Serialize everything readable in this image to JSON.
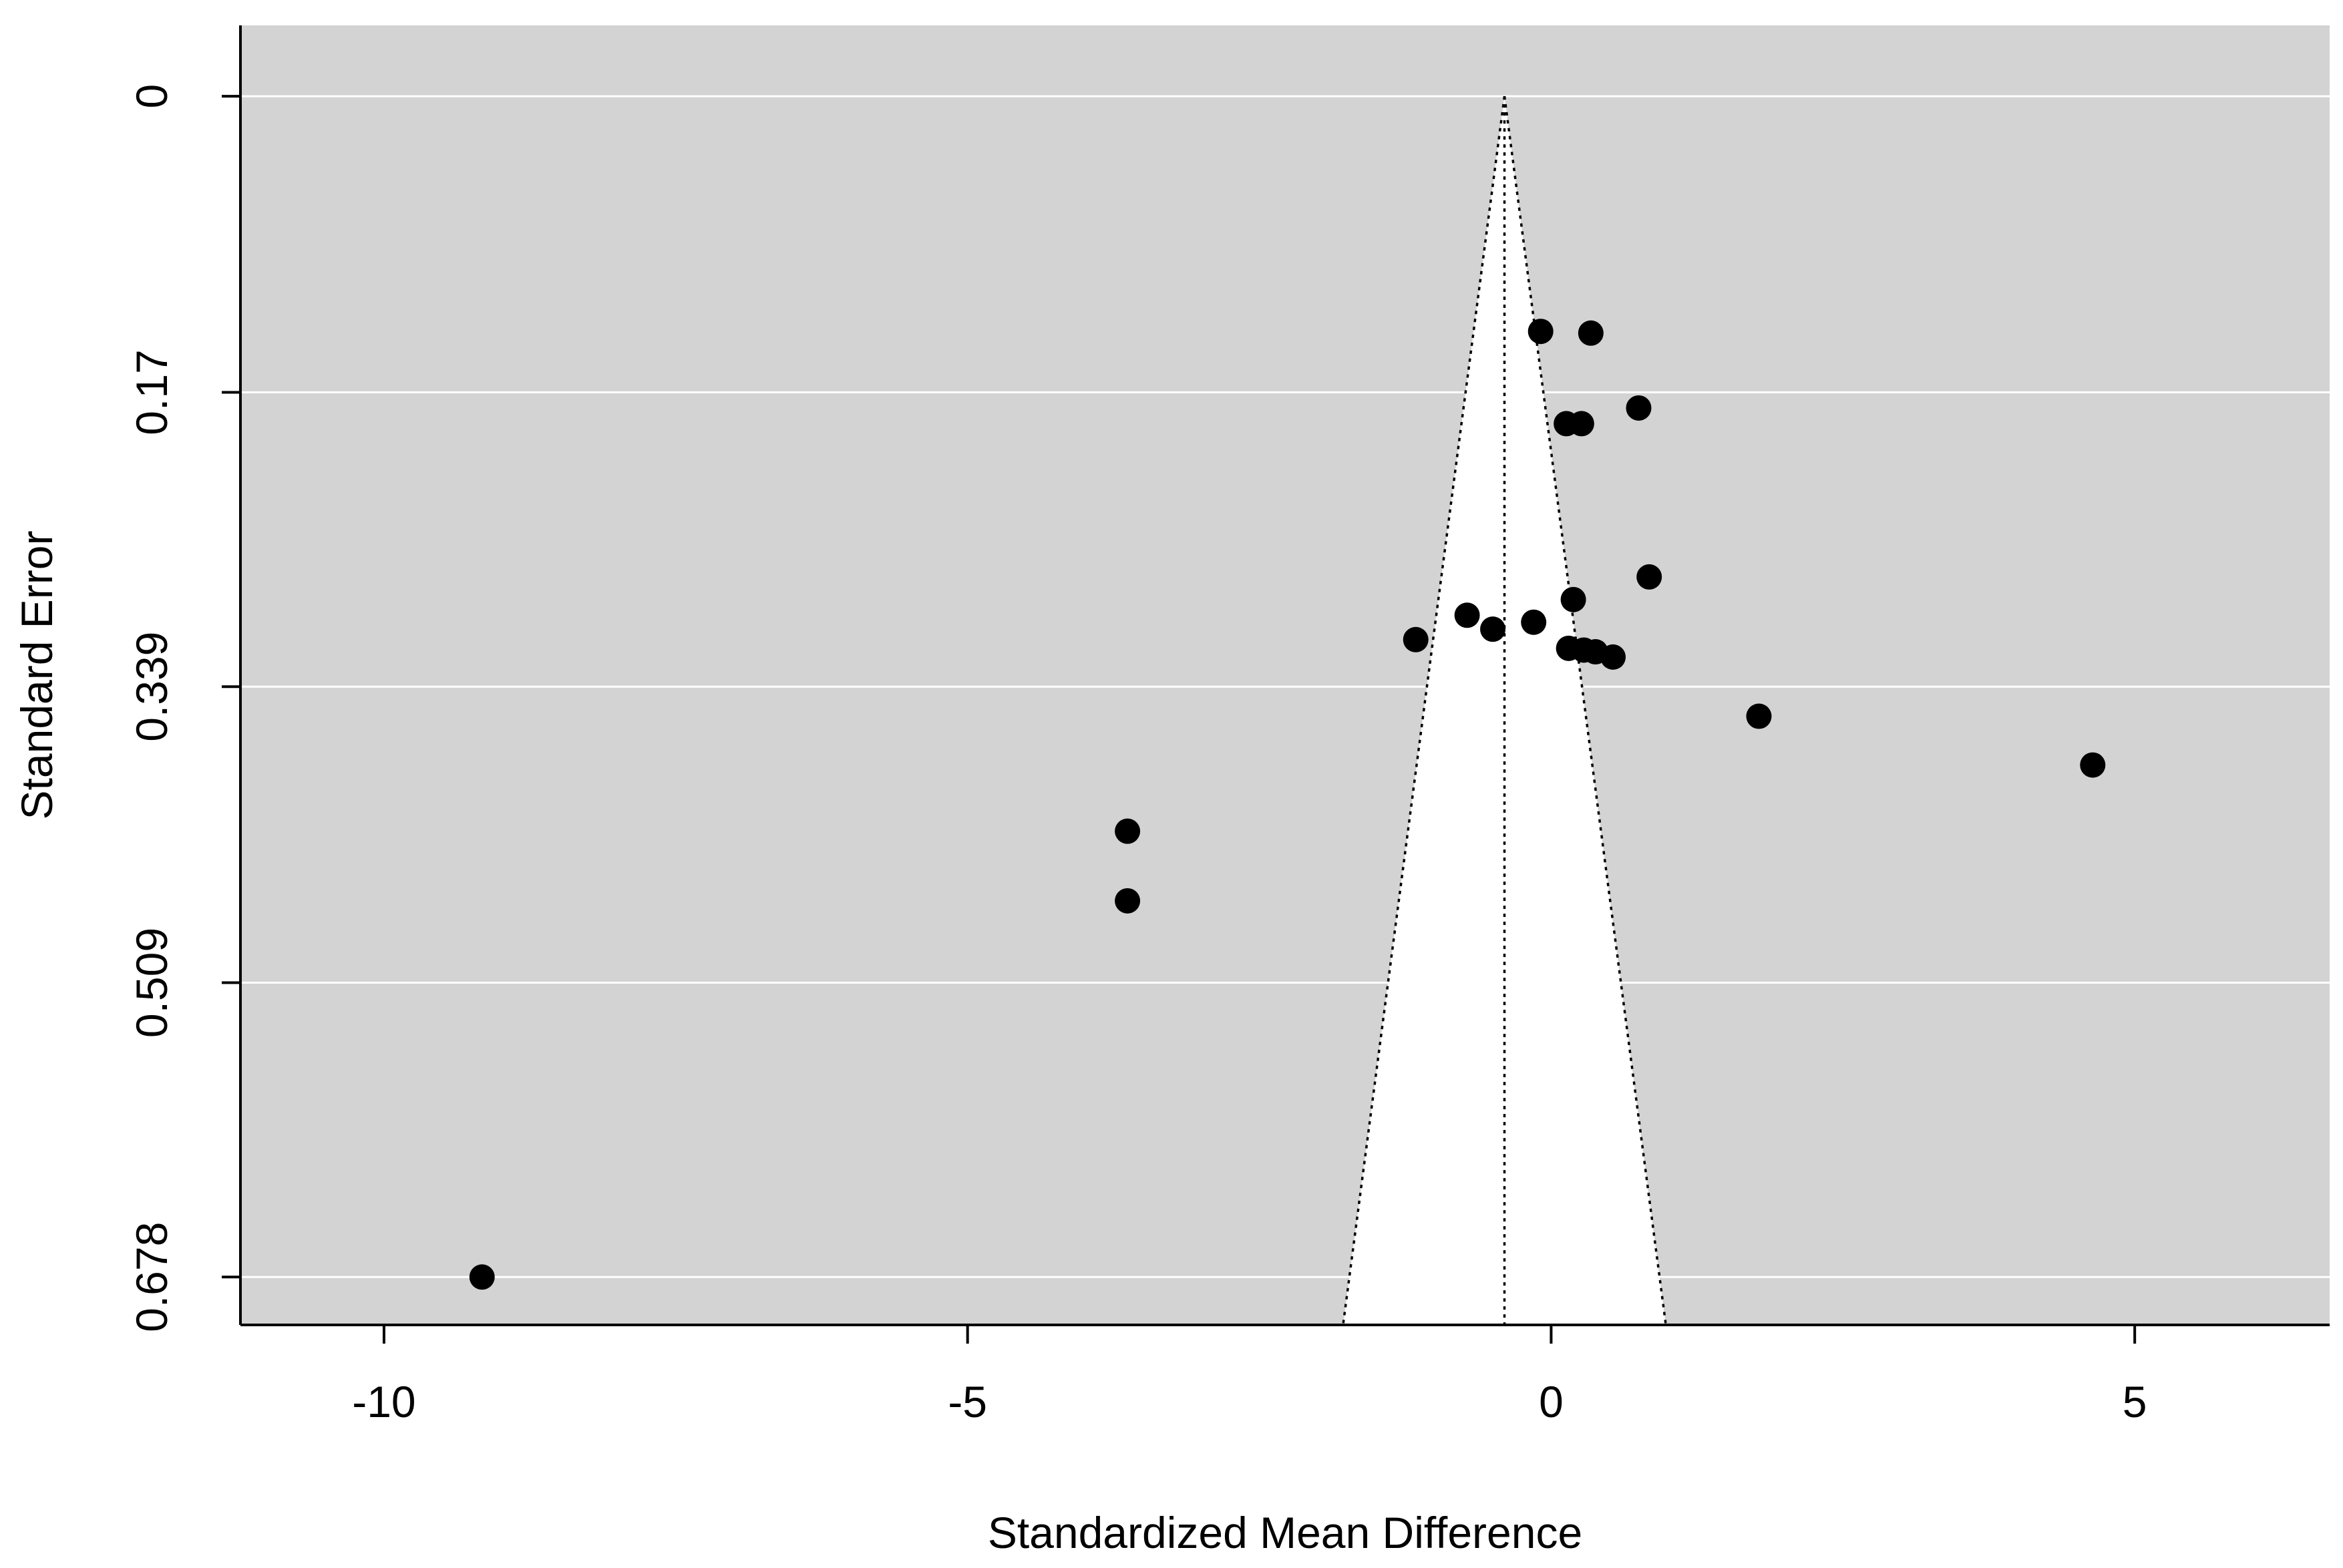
{
  "chart_data": {
    "type": "scatter",
    "xlabel": "Standardized Mean Difference",
    "ylabel": "Standard Error",
    "xlim": [
      -11.23,
      6.67
    ],
    "ylim": [
      0.7055,
      -0.0407
    ],
    "y_reversed": true,
    "x_ticks": [
      -10,
      -5,
      0,
      5
    ],
    "x_tick_labels": [
      "-10",
      "-5",
      "0",
      "5"
    ],
    "y_ticks": [
      0,
      0.17,
      0.339,
      0.509,
      0.678
    ],
    "y_tick_labels": [
      "0",
      "0.17",
      "0.339",
      "0.509",
      "0.678"
    ],
    "grid": "horizontal",
    "legend": "none",
    "funnel": {
      "center": -0.4,
      "se_top": 0,
      "se_bottom": 0.7055,
      "z": 1.96
    },
    "points": [
      {
        "x": -0.09,
        "y": 0.135
      },
      {
        "x": 0.34,
        "y": 0.136
      },
      {
        "x": 0.75,
        "y": 0.179
      },
      {
        "x": 0.13,
        "y": 0.188
      },
      {
        "x": 0.26,
        "y": 0.188
      },
      {
        "x": 0.84,
        "y": 0.276
      },
      {
        "x": 0.19,
        "y": 0.289
      },
      {
        "x": -0.72,
        "y": 0.298
      },
      {
        "x": -0.5,
        "y": 0.306
      },
      {
        "x": -0.15,
        "y": 0.302
      },
      {
        "x": -1.16,
        "y": 0.312
      },
      {
        "x": 0.15,
        "y": 0.317
      },
      {
        "x": 0.28,
        "y": 0.318
      },
      {
        "x": 0.38,
        "y": 0.319
      },
      {
        "x": 0.53,
        "y": 0.322
      },
      {
        "x": 1.78,
        "y": 0.356
      },
      {
        "x": 4.64,
        "y": 0.384
      },
      {
        "x": -3.63,
        "y": 0.422
      },
      {
        "x": -3.63,
        "y": 0.462
      },
      {
        "x": -9.16,
        "y": 0.678
      }
    ],
    "colors": {
      "panel_background": "#d3d3d3",
      "funnel_fill": "#ffffff",
      "gridline": "#ffffff",
      "points": "#000000"
    }
  }
}
